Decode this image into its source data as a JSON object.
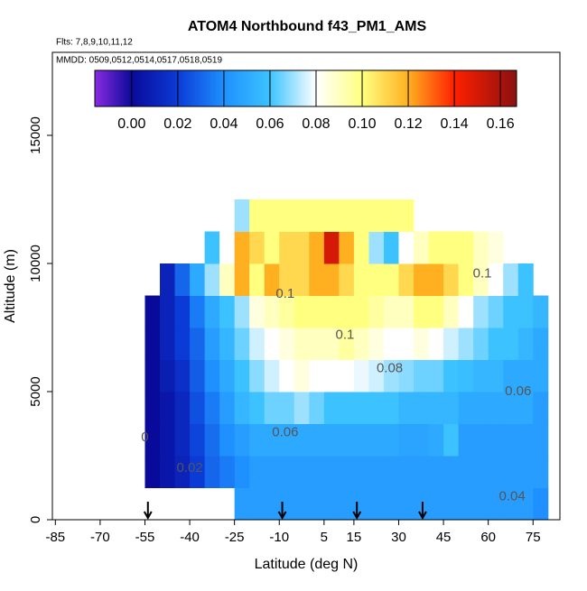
{
  "chart_data": {
    "type": "heatmap",
    "title": "ATOM4 Northbound f43_PM1_AMS",
    "subtitle": "Flts: 7,8,9,10,11,12",
    "annotation": "MMDD: 0509,0512,0514,0517,0518,0519",
    "xlabel": "Latitude (deg N)",
    "ylabel": "Altitude (m)",
    "xlim": [
      -86,
      84
    ],
    "ylim": [
      0,
      18240
    ],
    "xticks": [
      -85,
      -70,
      -55,
      -40,
      -25,
      -10,
      5,
      15,
      30,
      45,
      60,
      75
    ],
    "yticks": [
      0,
      5000,
      10000,
      15000
    ],
    "x_edges": [
      -55,
      -50,
      -45,
      -40,
      -35,
      -30,
      -25,
      -20,
      -15,
      -10,
      -5,
      0,
      5,
      10,
      15,
      20,
      25,
      30,
      35,
      40,
      45,
      50,
      55,
      60,
      65,
      70,
      75,
      80
    ],
    "y_edges": [
      0,
      1250,
      2500,
      3750,
      5000,
      6250,
      7500,
      8750,
      10000,
      11250,
      12500
    ],
    "z": [
      [
        null,
        null,
        null,
        null,
        null,
        null,
        0.045,
        0.045,
        0.045,
        0.045,
        0.045,
        0.045,
        0.045,
        0.045,
        0.045,
        0.045,
        0.045,
        0.045,
        0.045,
        0.045,
        0.045,
        0.045,
        0.045,
        0.045,
        0.045,
        0.045,
        0.04
      ],
      [
        0.0,
        0.005,
        0.01,
        0.02,
        0.03,
        0.035,
        0.04,
        0.045,
        0.045,
        0.045,
        0.045,
        0.045,
        0.045,
        0.045,
        0.045,
        0.045,
        0.045,
        0.045,
        0.045,
        0.045,
        0.045,
        0.045,
        0.045,
        0.045,
        0.045,
        0.045,
        0.045
      ],
      [
        0.0,
        0.005,
        0.012,
        0.022,
        0.032,
        0.04,
        0.045,
        0.05,
        0.05,
        0.05,
        0.05,
        0.05,
        0.05,
        0.05,
        0.05,
        0.05,
        0.05,
        0.048,
        0.048,
        0.05,
        0.06,
        0.045,
        0.045,
        0.045,
        0.045,
        0.045,
        0.045
      ],
      [
        0.0,
        0.005,
        0.012,
        0.025,
        0.035,
        0.045,
        0.055,
        0.06,
        0.065,
        0.065,
        0.07,
        0.065,
        0.06,
        0.06,
        0.06,
        0.06,
        0.06,
        0.055,
        0.055,
        0.055,
        0.055,
        0.05,
        0.05,
        0.05,
        0.05,
        0.05,
        0.045
      ],
      [
        0.0,
        0.008,
        0.015,
        0.028,
        0.04,
        0.05,
        0.06,
        0.068,
        0.075,
        0.08,
        0.085,
        0.08,
        0.08,
        0.08,
        0.078,
        0.075,
        0.07,
        0.068,
        0.065,
        0.065,
        0.06,
        0.058,
        0.055,
        0.055,
        0.05,
        0.05,
        0.05
      ],
      [
        0.0,
        0.01,
        0.02,
        0.03,
        0.045,
        0.055,
        0.065,
        0.075,
        0.08,
        0.085,
        0.09,
        0.09,
        0.09,
        0.095,
        0.09,
        0.085,
        0.08,
        0.08,
        0.085,
        0.08,
        0.075,
        0.07,
        0.065,
        0.06,
        0.06,
        0.055,
        0.05
      ],
      [
        0.0,
        0.01,
        0.02,
        0.035,
        0.05,
        0.06,
        0.07,
        0.085,
        0.09,
        0.095,
        0.1,
        0.1,
        0.1,
        0.1,
        0.1,
        0.095,
        0.09,
        0.09,
        0.1,
        0.1,
        0.09,
        0.08,
        0.07,
        0.065,
        0.06,
        0.06,
        0.055
      ],
      [
        null,
        0.01,
        0.03,
        0.05,
        0.07,
        0.09,
        0.12,
        0.1,
        0.12,
        0.11,
        0.11,
        0.12,
        0.12,
        0.11,
        0.1,
        0.1,
        0.1,
        0.11,
        0.12,
        0.12,
        0.11,
        0.1,
        0.09,
        0.08,
        0.07,
        0.06,
        null
      ],
      [
        null,
        null,
        null,
        null,
        0.06,
        0.08,
        0.12,
        0.11,
        0.1,
        0.11,
        0.11,
        0.12,
        0.15,
        0.12,
        0.1,
        0.07,
        0.06,
        0.08,
        0.09,
        0.1,
        0.1,
        0.1,
        0.09,
        0.085,
        null,
        null,
        null
      ],
      [
        null,
        null,
        null,
        null,
        null,
        null,
        0.07,
        0.1,
        0.1,
        0.1,
        0.1,
        0.1,
        0.1,
        0.1,
        0.1,
        0.1,
        0.1,
        0.1,
        null,
        null,
        null,
        null,
        null,
        null,
        null,
        null,
        null
      ]
    ],
    "clim": [
      -0.016,
      0.167
    ],
    "colorscale": [
      [
        -0.016,
        "#8a2be2"
      ],
      [
        0,
        "#0a0a9a"
      ],
      [
        0.02,
        "#0b3bd6"
      ],
      [
        0.04,
        "#1e90ff"
      ],
      [
        0.06,
        "#3cc3ff"
      ],
      [
        0.08,
        "#ffffff"
      ],
      [
        0.1,
        "#ffff80"
      ],
      [
        0.12,
        "#ffb020"
      ],
      [
        0.14,
        "#ff2000"
      ],
      [
        0.167,
        "#8b1010"
      ]
    ],
    "cticks": [
      {
        "value": 0,
        "label": "0.00"
      },
      {
        "value": 0.02,
        "label": "0.02"
      },
      {
        "value": 0.04,
        "label": "0.04"
      },
      {
        "value": 0.06,
        "label": "0.06"
      },
      {
        "value": 0.08,
        "label": "0.08"
      },
      {
        "value": 0.1,
        "label": "0.10"
      },
      {
        "value": 0.12,
        "label": "0.12"
      },
      {
        "value": 0.14,
        "label": "0.14"
      },
      {
        "value": 0.16,
        "label": "0.16"
      }
    ],
    "contour_labels": [
      {
        "text": "0.1",
        "x": -8,
        "y": 8800
      },
      {
        "text": "0.1",
        "x": 12,
        "y": 7200
      },
      {
        "text": "0.1",
        "x": 58,
        "y": 9600
      },
      {
        "text": "0.08",
        "x": 27,
        "y": 5900
      },
      {
        "text": "0.06",
        "x": -8,
        "y": 3400
      },
      {
        "text": "0.06",
        "x": 70,
        "y": 5000
      },
      {
        "text": "0.04",
        "x": 68,
        "y": 900
      },
      {
        "text": "0",
        "x": -55,
        "y": 3200
      },
      {
        "text": "0.02",
        "x": -40,
        "y": 2000
      }
    ],
    "arrows": [
      -54,
      -9,
      16,
      38
    ]
  }
}
